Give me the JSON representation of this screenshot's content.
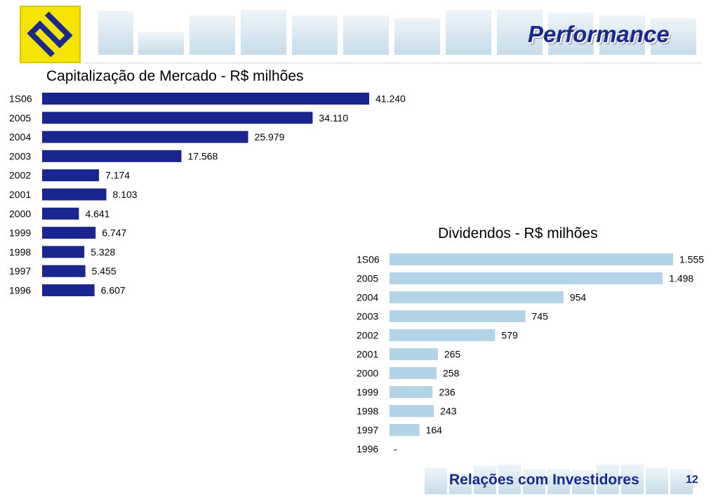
{
  "header": {
    "title": "Performance"
  },
  "footer": {
    "label": "Relações com Investidores",
    "page_number": "12"
  },
  "colors": {
    "cap_bar": "#1a2590",
    "div_bar": "#b3d4e6",
    "brand_blue": "#1a2a8c",
    "logo_yellow": "#f5e400"
  },
  "chart_data": [
    {
      "type": "bar",
      "orientation": "horizontal",
      "title": "Capitalização de Mercado - R$ milhões",
      "categories": [
        "1S06",
        "2005",
        "2004",
        "2003",
        "2002",
        "2001",
        "2000",
        "1999",
        "1998",
        "1997",
        "1996"
      ],
      "values": [
        41240,
        34110,
        25979,
        17568,
        7174,
        8103,
        4641,
        6747,
        5328,
        5455,
        6607
      ],
      "labels": [
        "41.240",
        "34.110",
        "25.979",
        "17.568",
        "7.174",
        "8.103",
        "4.641",
        "6.747",
        "5.328",
        "5.455",
        "6.607"
      ]
    },
    {
      "type": "bar",
      "orientation": "horizontal",
      "title": "Dividendos - R$ milhões",
      "categories": [
        "1S06",
        "2005",
        "2004",
        "2003",
        "2002",
        "2001",
        "2000",
        "1999",
        "1998",
        "1997",
        "1996"
      ],
      "values": [
        1555,
        1498,
        954,
        745,
        579,
        265,
        258,
        236,
        243,
        164,
        null
      ],
      "labels": [
        "1.555",
        "1.498",
        "954",
        "745",
        "579",
        "265",
        "258",
        "236",
        "243",
        "164",
        "-"
      ]
    }
  ]
}
